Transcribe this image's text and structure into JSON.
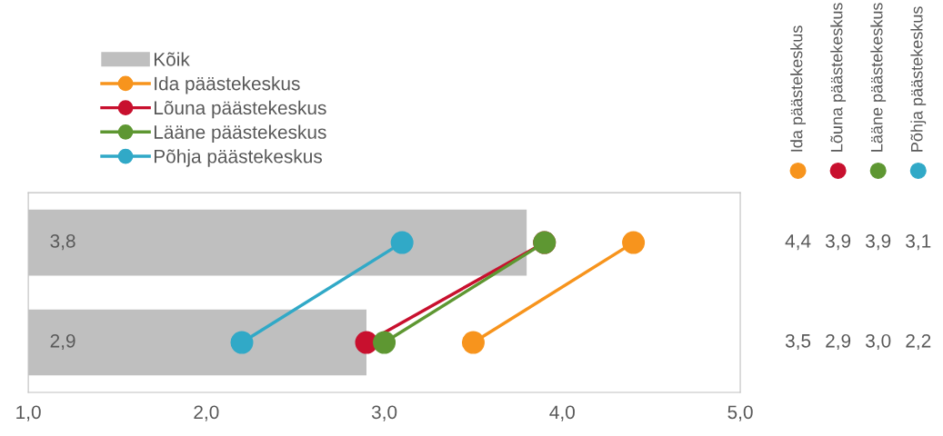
{
  "chart_data": {
    "type": "bar",
    "orientation": "horizontal",
    "categories": [
      null,
      null
    ],
    "xlim": [
      1,
      5
    ],
    "xticks": [
      {
        "value": 1,
        "label": "1,0"
      },
      {
        "value": 2,
        "label": "2,0"
      },
      {
        "value": 3,
        "label": "3,0"
      },
      {
        "value": 4,
        "label": "4,0"
      },
      {
        "value": 5,
        "label": "5,0"
      }
    ],
    "legend": "top left",
    "marker": "circle",
    "line_style": "solid",
    "grid": false,
    "data_labels": true,
    "series": [
      {
        "name": "Kõik",
        "color": "#bfbfbf",
        "values": [
          3.8,
          2.9
        ],
        "value_labels": [
          "3,8",
          "2,9"
        ]
      },
      {
        "name": "Ida päästekeskus",
        "type": "line",
        "color": "#f7941d",
        "values": [
          4.4,
          3.5
        ],
        "value_labels": [
          "4,4",
          "3,5"
        ]
      },
      {
        "name": "Lõuna päästekeskus",
        "type": "line",
        "color": "#c8102e",
        "values": [
          3.9,
          2.9
        ],
        "value_labels": [
          "3,9",
          "2,9"
        ]
      },
      {
        "name": "Lääne päästekeskus",
        "type": "line",
        "color": "#5e9732",
        "values": [
          3.9,
          3.0
        ],
        "value_labels": [
          "3,9",
          "3,0"
        ]
      },
      {
        "name": "Põhja päästekeskus",
        "type": "line",
        "color": "#31a9c7",
        "values": [
          3.1,
          2.2
        ],
        "value_labels": [
          "3,1",
          "2,2"
        ]
      }
    ]
  }
}
